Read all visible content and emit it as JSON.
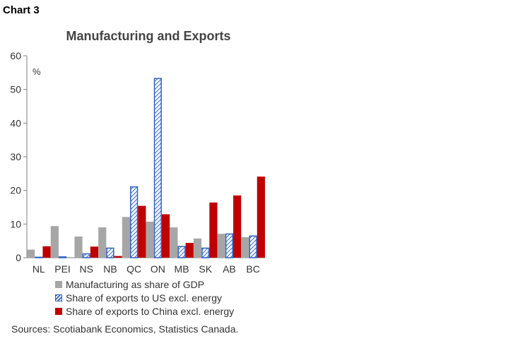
{
  "header": {
    "chart_number": "Chart 3",
    "title": "Manufacturing and Exports",
    "source": "Sources: Scotiabank Economics, Statistics Canada."
  },
  "chart_data": {
    "type": "bar",
    "title": "Manufacturing and Exports",
    "unit_label": "%",
    "categories": [
      "NL",
      "PEI",
      "NS",
      "NB",
      "QC",
      "ON",
      "MB",
      "SK",
      "AB",
      "BC"
    ],
    "ylim": [
      0,
      60
    ],
    "yticks": [
      0,
      10,
      20,
      30,
      40,
      50,
      60
    ],
    "grid": false,
    "legend_position": "bottom",
    "series": [
      {
        "name": "Manufacturing as share of GDP",
        "color": "#a6a6a6",
        "pattern": "solid",
        "values": [
          2.4,
          9.4,
          6.3,
          9.0,
          12.1,
          10.7,
          9.0,
          5.7,
          7.1,
          6.1
        ]
      },
      {
        "name": "Share of exports to US excl. energy",
        "color": "#2e62c4",
        "pattern": "hatched",
        "values": [
          0.3,
          0.4,
          1.3,
          3.0,
          21.2,
          53.4,
          3.5,
          3.0,
          7.2,
          6.6
        ]
      },
      {
        "name": "Share of exports to China excl. energy",
        "color": "#c00000",
        "pattern": "solid",
        "values": [
          3.4,
          0.0,
          3.3,
          0.5,
          15.4,
          12.9,
          4.4,
          16.4,
          18.5,
          24.1
        ]
      }
    ]
  }
}
